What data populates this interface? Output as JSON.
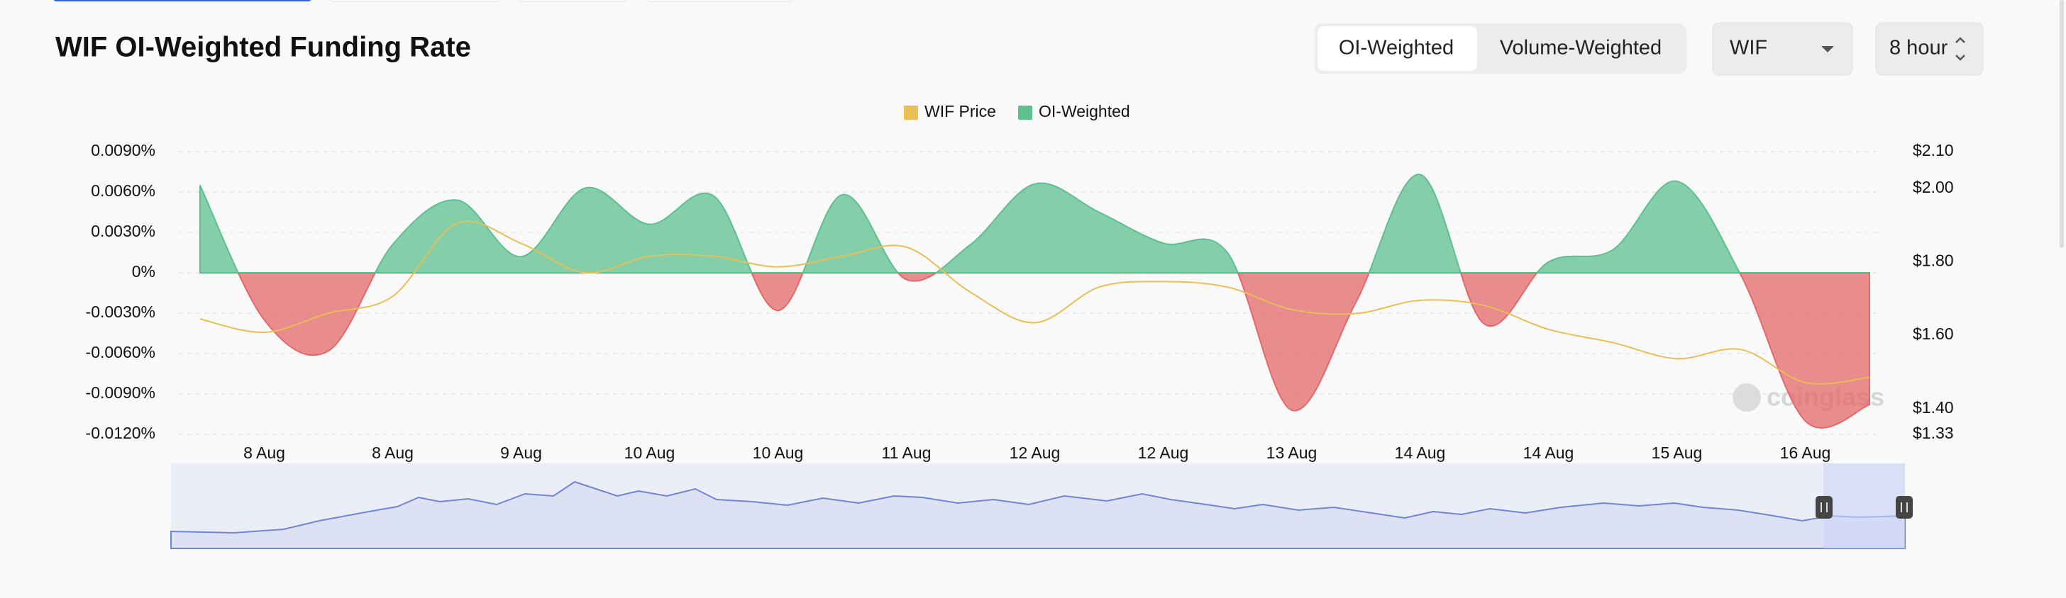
{
  "header": {
    "title": "WIF OI-Weighted Funding Rate"
  },
  "controls": {
    "weighting": [
      "OI-Weighted",
      "Volume-Weighted"
    ],
    "symbol": "WIF",
    "interval": "8 hour"
  },
  "chart_data": {
    "type": "combo",
    "categories": [
      null,
      "8 Aug",
      null,
      "8 Aug",
      null,
      "9 Aug",
      null,
      "10 Aug",
      null,
      "10 Aug",
      null,
      "11 Aug",
      null,
      "12 Aug",
      null,
      "12 Aug",
      null,
      "13 Aug",
      null,
      "14 Aug",
      null,
      "14 Aug",
      null,
      "15 Aug",
      null,
      "16 Aug",
      null
    ],
    "series": [
      {
        "name": "WIF Price",
        "type": "line",
        "axis": "y2",
        "color": "#e8bf55",
        "values": [
          1.644,
          1.608,
          1.66,
          1.706,
          1.905,
          1.85,
          1.77,
          1.815,
          1.815,
          1.786,
          1.815,
          1.84,
          1.717,
          1.634,
          1.731,
          1.746,
          1.731,
          1.67,
          1.659,
          1.695,
          1.681,
          1.616,
          1.58,
          1.536,
          1.561,
          1.471,
          1.485
        ]
      },
      {
        "name": "OI-Weighted",
        "type": "area",
        "color": "#5ebf8f",
        "negative_color": "#e4676a",
        "values": [
          0.0065,
          -0.0035,
          -0.0058,
          0.0021,
          0.0054,
          0.0012,
          0.0063,
          0.0036,
          0.0057,
          -0.0028,
          0.0058,
          -0.0005,
          0.0021,
          0.0066,
          0.0045,
          0.0022,
          0.0015,
          -0.0102,
          -0.0022,
          0.0073,
          -0.0038,
          0.0008,
          0.0017,
          0.0068,
          -0.0002,
          -0.011,
          -0.0098
        ]
      }
    ],
    "ylim": [
      -0.012,
      0.009
    ],
    "yticks": [
      {
        "value": 0.009,
        "label": "0.0090%"
      },
      {
        "value": 0.006,
        "label": "0.0060%"
      },
      {
        "value": 0.003,
        "label": "0.0030%"
      },
      {
        "value": 0,
        "label": "0%"
      },
      {
        "value": -0.003,
        "label": "-0.0030%"
      },
      {
        "value": -0.006,
        "label": "-0.0060%"
      },
      {
        "value": -0.009,
        "label": "-0.0090%"
      },
      {
        "value": -0.012,
        "label": "-0.0120%"
      }
    ],
    "y2lim": [
      1.33,
      2.1
    ],
    "y2ticks": [
      {
        "value": 2.1,
        "label": "$2.10"
      },
      {
        "value": 2.0,
        "label": "$2.00"
      },
      {
        "value": 1.8,
        "label": "$1.80"
      },
      {
        "value": 1.6,
        "label": "$1.60"
      },
      {
        "value": 1.4,
        "label": "$1.40"
      },
      {
        "value": 1.33,
        "label": "$1.33"
      }
    ],
    "grid": true,
    "legend": "top",
    "watermark": "coinglass"
  }
}
